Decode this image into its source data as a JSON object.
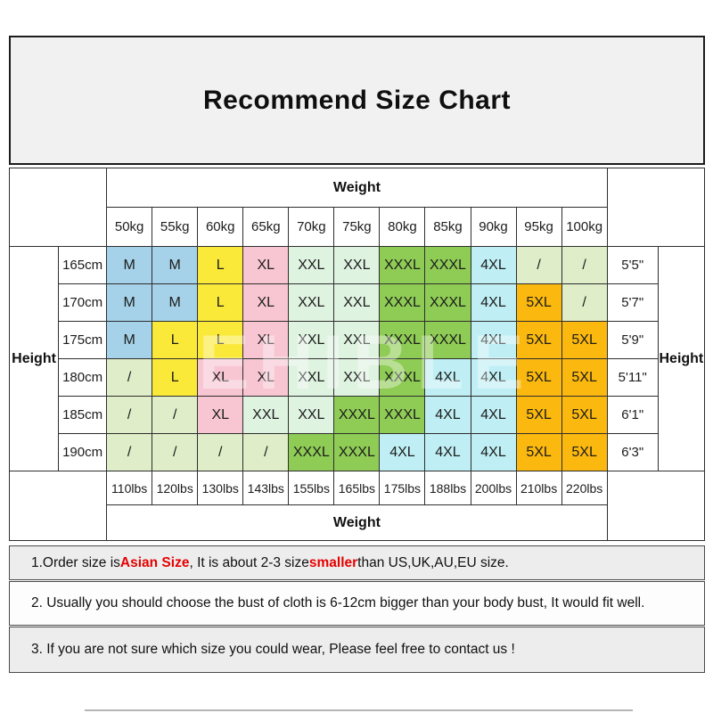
{
  "title": "Recommend Size Chart",
  "table": {
    "weight_label": "Weight",
    "height_label": "Height",
    "kg_headers": [
      "50kg",
      "55kg",
      "60kg",
      "65kg",
      "70kg",
      "75kg",
      "80kg",
      "85kg",
      "90kg",
      "95kg",
      "100kg"
    ],
    "lbs_footers": [
      "110lbs",
      "120lbs",
      "130lbs",
      "143lbs",
      "155lbs",
      "165lbs",
      "175lbs",
      "188lbs",
      "200lbs",
      "210lbs",
      "220lbs"
    ],
    "rows": [
      {
        "cm": "165cm",
        "sizes": [
          "M",
          "M",
          "L",
          "XL",
          "XXL",
          "XXL",
          "XXXL",
          "XXXL",
          "4XL",
          "/",
          "/"
        ],
        "ft": "5'5\""
      },
      {
        "cm": "170cm",
        "sizes": [
          "M",
          "M",
          "L",
          "XL",
          "XXL",
          "XXL",
          "XXXL",
          "XXXL",
          "4XL",
          "5XL",
          "/"
        ],
        "ft": "5'7\""
      },
      {
        "cm": "175cm",
        "sizes": [
          "M",
          "L",
          "L",
          "XL",
          "XXL",
          "XXL",
          "XXXL",
          "XXXL",
          "4XL",
          "5XL",
          "5XL"
        ],
        "ft": "5'9\""
      },
      {
        "cm": "180cm",
        "sizes": [
          "/",
          "L",
          "XL",
          "XL",
          "XXL",
          "XXL",
          "XXXL",
          "4XL",
          "4XL",
          "5XL",
          "5XL"
        ],
        "ft": "5'11\""
      },
      {
        "cm": "185cm",
        "sizes": [
          "/",
          "/",
          "XL",
          "XXL",
          "XXL",
          "XXXL",
          "XXXL",
          "4XL",
          "4XL",
          "5XL",
          "5XL"
        ],
        "ft": "6'1\""
      },
      {
        "cm": "190cm",
        "sizes": [
          "/",
          "/",
          "/",
          "/",
          "XXXL",
          "XXXL",
          "4XL",
          "4XL",
          "4XL",
          "5XL",
          "5XL"
        ],
        "ft": "6'3\""
      }
    ]
  },
  "size_colors": {
    "M": "#a5d2e9",
    "L": "#fae938",
    "XL": "#f8c6d2",
    "XXL": "#dff3e1",
    "XXXL": "#8fcc55",
    "4XL": "#bfeff4",
    "5XL": "#fbb80e",
    "/": "#dfedc9"
  },
  "notes": {
    "note1_segments": [
      {
        "text": "1.Order size is ",
        "red": false
      },
      {
        "text": "Asian Size",
        "red": true
      },
      {
        "text": ", It is about 2-3 size ",
        "red": false
      },
      {
        "text": "smaller",
        "red": true
      },
      {
        "text": " than US,UK,AU,EU size.",
        "red": false
      }
    ],
    "note2": "2. Usually you should choose the bust of cloth is 6-12cm bigger than your body bust, It would fit well.",
    "note3": "3. If you are not sure which size you could wear, Please feel free to contact us !"
  },
  "watermark": "EHIBLE",
  "accent_colors": {
    "red": "#e60000",
    "note_band_bg": "#ededed",
    "title_bg": "#f1f1f1"
  }
}
